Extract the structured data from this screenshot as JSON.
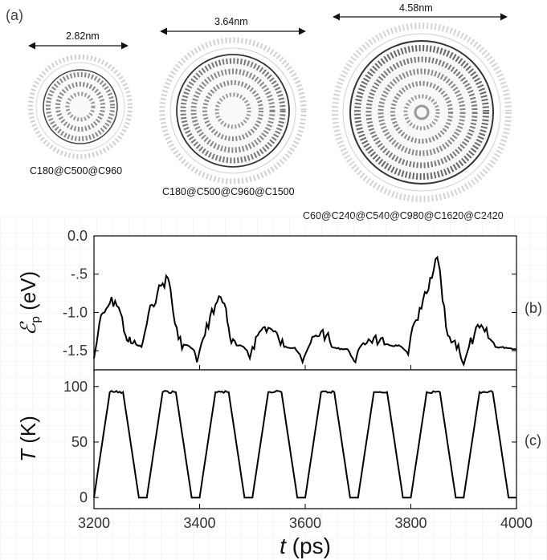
{
  "panel_a": {
    "label": "(a)",
    "structures": [
      {
        "width_label": "2.82nm",
        "name": "C180@C500@C960"
      },
      {
        "width_label": "3.64nm",
        "name": "C180@C500@C960@C1500"
      },
      {
        "width_label": "4.58nm",
        "name": "C60@C240@C540@C980@C1620@C2420"
      }
    ]
  },
  "chart_data": [
    {
      "type": "line",
      "panel": "(b)",
      "ylabel_main": "ℰ",
      "ylabel_sub": "p",
      "ylabel_unit": " (eV)",
      "xlim": [
        3200,
        4000
      ],
      "ylim": [
        -1.75,
        0.0
      ],
      "yticks": [
        "0.0",
        "-.5",
        "-1.0",
        "-1.5"
      ],
      "ytick_values": [
        0.0,
        -0.5,
        -1.0,
        -1.5
      ],
      "series": [
        {
          "x": [
            3200,
            3205,
            3210,
            3220,
            3230,
            3240,
            3250,
            3260,
            3265,
            3270,
            3280,
            3290,
            3295,
            3300,
            3310,
            3320,
            3330,
            3340,
            3345,
            3350,
            3360,
            3370,
            3380,
            3390,
            3395,
            3400,
            3410,
            3420,
            3430,
            3440,
            3450,
            3455,
            3460,
            3470,
            3480,
            3490,
            3495,
            3500,
            3510,
            3520,
            3530,
            3540,
            3550,
            3560,
            3580,
            3590,
            3595,
            3600,
            3610,
            3620,
            3630,
            3640,
            3650,
            3660,
            3680,
            3690,
            3695,
            3700,
            3710,
            3720,
            3730,
            3740,
            3750,
            3760,
            3780,
            3790,
            3795,
            3800,
            3810,
            3820,
            3830,
            3840,
            3850,
            3855,
            3860,
            3870,
            3880,
            3890,
            3895,
            3900,
            3910,
            3920,
            3930,
            3940,
            3950,
            3960,
            3980,
            3990,
            4000
          ],
          "y": [
            -1.6,
            -1.4,
            -1.15,
            -1.0,
            -0.88,
            -0.85,
            -1.0,
            -1.3,
            -1.38,
            -1.4,
            -1.42,
            -1.45,
            -1.3,
            -1.15,
            -0.9,
            -0.75,
            -0.62,
            -0.55,
            -0.7,
            -1.0,
            -1.35,
            -1.42,
            -1.44,
            -1.5,
            -1.65,
            -1.5,
            -1.3,
            -1.05,
            -0.9,
            -0.8,
            -0.95,
            -1.2,
            -1.4,
            -1.43,
            -1.44,
            -1.5,
            -1.6,
            -1.45,
            -1.3,
            -1.2,
            -1.2,
            -1.25,
            -1.35,
            -1.45,
            -1.46,
            -1.55,
            -1.65,
            -1.55,
            -1.4,
            -1.3,
            -1.25,
            -1.3,
            -1.45,
            -1.47,
            -1.48,
            -1.6,
            -1.65,
            -1.5,
            -1.4,
            -1.35,
            -1.33,
            -1.38,
            -1.42,
            -1.43,
            -1.44,
            -1.5,
            -1.55,
            -1.3,
            -1.1,
            -0.95,
            -0.75,
            -0.55,
            -0.28,
            -0.45,
            -0.85,
            -1.3,
            -1.38,
            -1.42,
            -1.6,
            -1.68,
            -1.45,
            -1.3,
            -1.2,
            -1.25,
            -1.35,
            -1.45,
            -1.46,
            -1.47,
            -1.48
          ]
        }
      ]
    },
    {
      "type": "line",
      "panel": "(c)",
      "ylabel_main": "T",
      "ylabel_unit": " (K)",
      "xlabel_main": "t",
      "xlabel_unit": " (ps)",
      "xlim": [
        3200,
        4000
      ],
      "ylim": [
        -10,
        115
      ],
      "xticks": [
        "3200",
        "3400",
        "3600",
        "3800",
        "4000"
      ],
      "xtick_values": [
        3200,
        3400,
        3600,
        3800,
        4000
      ],
      "yticks": [
        "100",
        "50",
        "0"
      ],
      "ytick_values": [
        100,
        50,
        0
      ],
      "series": [
        {
          "x": [
            3200,
            3230,
            3255,
            3285,
            3300,
            3330,
            3355,
            3385,
            3400,
            3430,
            3455,
            3485,
            3500,
            3530,
            3555,
            3585,
            3600,
            3630,
            3655,
            3685,
            3700,
            3730,
            3755,
            3785,
            3800,
            3830,
            3855,
            3885,
            3900,
            3930,
            3955,
            3985,
            4000
          ],
          "y": [
            0,
            95,
            95,
            0,
            0,
            95,
            95,
            0,
            0,
            95,
            95,
            0,
            0,
            95,
            95,
            0,
            0,
            95,
            95,
            0,
            0,
            95,
            95,
            0,
            0,
            95,
            95,
            0,
            0,
            95,
            95,
            0,
            0
          ]
        }
      ]
    }
  ]
}
